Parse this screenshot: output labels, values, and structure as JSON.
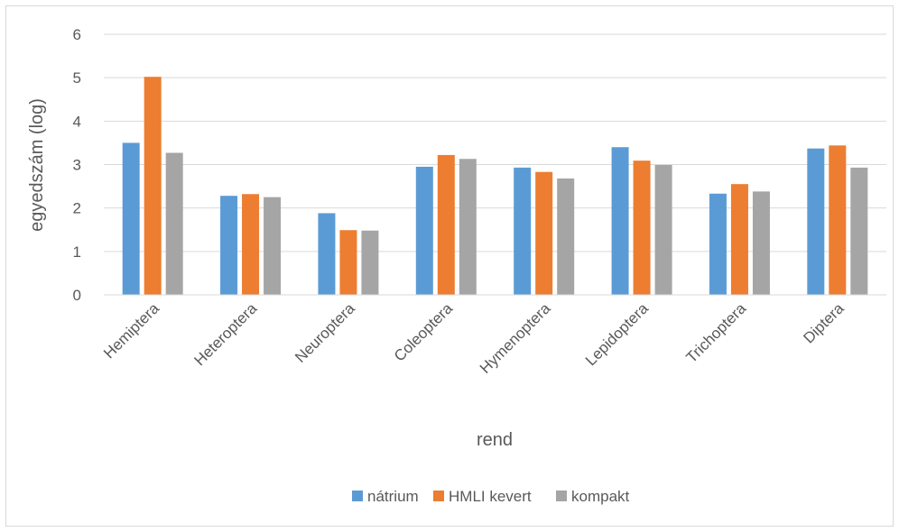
{
  "chart_data": {
    "type": "bar",
    "title": "",
    "xlabel": "rend",
    "ylabel": "egyedszám (log)",
    "ylim": [
      0,
      6
    ],
    "yticks": [
      0,
      1,
      2,
      3,
      4,
      5,
      6
    ],
    "grid": true,
    "legend_position": "bottom",
    "categories": [
      "Hemiptera",
      "Heteroptera",
      "Neuroptera",
      "Coleoptera",
      "Hymenoptera",
      "Lepidoptera",
      "Trichoptera",
      "Diptera"
    ],
    "series": [
      {
        "name": "nátrium",
        "color": "#5b9bd5",
        "values": [
          3.5,
          2.28,
          1.88,
          2.95,
          2.93,
          3.4,
          2.33,
          3.37
        ]
      },
      {
        "name": "HMLI kevert",
        "color": "#ed7d31",
        "values": [
          5.02,
          2.32,
          1.49,
          3.22,
          2.83,
          3.09,
          2.55,
          3.44
        ]
      },
      {
        "name": "kompakt",
        "color": "#a5a5a5",
        "values": [
          3.27,
          2.25,
          1.48,
          3.13,
          2.68,
          2.99,
          2.38,
          2.93
        ]
      }
    ]
  }
}
